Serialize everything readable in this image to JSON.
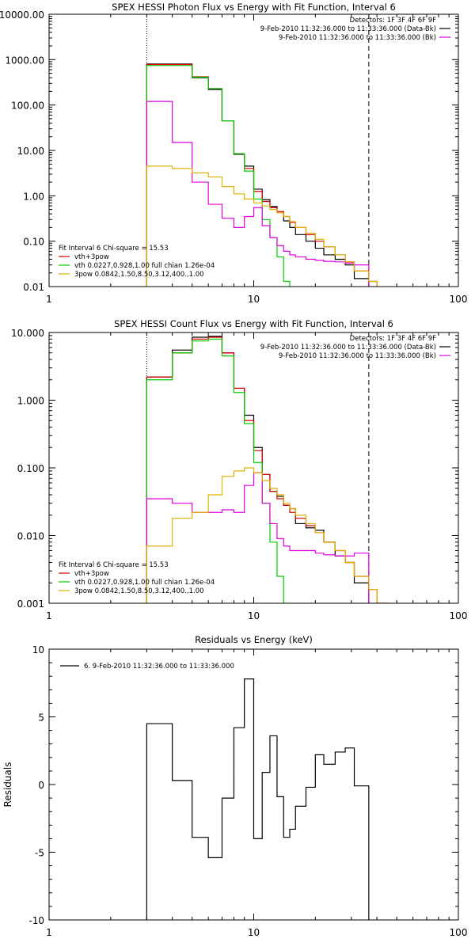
{
  "chart_data": [
    {
      "type": "line",
      "title": "SPEX HESSI Photon Flux vs Energy with Fit Function, Interval 6",
      "xlabel": "",
      "ylabel": "",
      "xscale": "log",
      "yscale": "log",
      "xlim": [
        1,
        100
      ],
      "ylim": [
        0.01,
        10000
      ],
      "xticks": [
        "1",
        "10",
        "100"
      ],
      "yticks": [
        "0.01",
        "0.10",
        "1.00",
        "10.00",
        "100.00",
        "1000.00",
        "10000.00"
      ],
      "grid": false,
      "vlines": [
        {
          "x": 3.0,
          "style": "dotted"
        },
        {
          "x": 36.5,
          "style": "dashed"
        }
      ],
      "header_lines": [
        "Detectors: 1F 3F 4F 6F 9F",
        "9-Feb-2010 11:32:36.000 to 11:33:36.000 (Data-Bk)",
        "9-Feb-2010 11:32:36.000 to 11:33:36.000 (Bk)"
      ],
      "legend_title": "Fit Interval 6   Chi-square = 15.53",
      "legend_entries": [
        "vth+3pow",
        "vth 0.0227,0.928,1.00  full chian 1.26e-04",
        "3pow 0.0842,1.50,8.50,3.12,400.,1.00"
      ],
      "edges": [
        3.0,
        4.0,
        5.0,
        6.0,
        7.0,
        8.0,
        9.0,
        10.0,
        11.0,
        12.0,
        13.0,
        14.0,
        15.0,
        16.0,
        18.0,
        20.0,
        22.0,
        25.0,
        28.0,
        31.0,
        36.5,
        40.0,
        45.0
      ],
      "series": [
        {
          "color": "#000000",
          "values": [
            800,
            800,
            400,
            220,
            45,
            8.2,
            4.5,
            1.4,
            0.82,
            0.58,
            0.42,
            0.28,
            0.2,
            0.14,
            0.1,
            0.07,
            0.05,
            0.04,
            0.03,
            0.015,
            null,
            null
          ]
        },
        {
          "color": "#d60000",
          "values": [
            780,
            780,
            420,
            230,
            45,
            8.5,
            4.0,
            1.25,
            0.75,
            0.55,
            0.45,
            0.35,
            0.26,
            0.2,
            0.14,
            0.1,
            0.075,
            0.05,
            0.035,
            0.022,
            0.013,
            null
          ]
        },
        {
          "color": "#00cc00",
          "values": [
            740,
            740,
            410,
            230,
            45,
            8.5,
            3.5,
            0.85,
            0.3,
            0.12,
            0.045,
            0.013,
            null,
            null,
            null,
            null,
            null,
            null,
            null,
            null,
            null,
            null
          ]
        },
        {
          "color": "#e000e0",
          "values": [
            120,
            15,
            2.0,
            0.65,
            0.32,
            0.2,
            0.35,
            0.55,
            0.22,
            0.12,
            0.08,
            0.06,
            0.05,
            0.045,
            0.04,
            0.038,
            0.036,
            0.035,
            0.033,
            0.03,
            null,
            null
          ]
        },
        {
          "color": "#e0b000",
          "values": [
            4.5,
            4.0,
            3.2,
            2.6,
            1.6,
            1.1,
            0.85,
            0.7,
            0.6,
            0.5,
            0.42,
            0.35,
            0.27,
            0.2,
            0.15,
            0.11,
            0.075,
            0.05,
            0.035,
            0.022,
            0.013,
            null
          ]
        }
      ]
    },
    {
      "type": "line",
      "title": "SPEX HESSI Count Flux vs Energy with Fit Function, Interval 6",
      "xlabel": "",
      "ylabel": "",
      "xscale": "log",
      "yscale": "log",
      "xlim": [
        1,
        100
      ],
      "ylim": [
        0.001,
        10
      ],
      "xticks": [
        "1",
        "10",
        "100"
      ],
      "yticks": [
        "0.001",
        "0.010",
        "0.100",
        "1.000",
        "10.000"
      ],
      "grid": false,
      "vlines": [
        {
          "x": 3.0,
          "style": "dotted"
        },
        {
          "x": 36.5,
          "style": "dashed"
        }
      ],
      "header_lines": [
        "Detectors: 1F 3F 4F 6F 9F",
        "9-Feb-2010 11:32:36.000 to 11:33:36.000 (Data-Bk)",
        "9-Feb-2010 11:32:36.000 to 11:33:36.000 (Bk)"
      ],
      "legend_title": "Fit Interval 6   Chi-square = 15.53",
      "legend_entries": [
        "vth+3pow",
        "vth 0.0227,0.928,1.00  full chian 1.26e-04",
        "3pow 0.0842,1.50,8.50,3.12,400.,1.00"
      ],
      "edges": [
        3.0,
        4.0,
        5.0,
        6.0,
        7.0,
        8.0,
        9.0,
        10.0,
        11.0,
        12.0,
        13.0,
        14.0,
        15.0,
        16.0,
        18.0,
        20.0,
        22.0,
        25.0,
        28.0,
        31.0,
        36.5,
        40.0,
        45.0
      ],
      "series": [
        {
          "color": "#000000",
          "values": [
            2.2,
            5.5,
            8.5,
            8.8,
            5.0,
            1.5,
            0.6,
            0.2,
            0.08,
            0.045,
            0.038,
            0.028,
            0.025,
            0.015,
            0.013,
            0.012,
            0.008,
            0.005,
            0.004,
            0.002,
            null,
            null
          ]
        },
        {
          "color": "#d60000",
          "values": [
            2.2,
            5.0,
            8.0,
            8.5,
            5.0,
            1.5,
            0.5,
            0.18,
            0.08,
            0.045,
            0.035,
            0.028,
            0.022,
            0.018,
            0.014,
            0.011,
            0.008,
            0.006,
            0.004,
            0.0025,
            0.0016,
            0.001
          ]
        },
        {
          "color": "#00cc00",
          "values": [
            2.0,
            5.0,
            7.5,
            8.0,
            4.5,
            1.3,
            0.45,
            0.12,
            0.03,
            0.008,
            0.0025,
            0.001,
            null,
            null,
            null,
            null,
            null,
            null,
            null,
            null,
            null,
            null
          ]
        },
        {
          "color": "#e000e0",
          "values": [
            0.035,
            0.03,
            0.022,
            0.022,
            0.024,
            0.022,
            0.055,
            0.085,
            0.03,
            0.015,
            0.009,
            0.007,
            0.006,
            0.006,
            0.006,
            0.0055,
            0.0052,
            0.005,
            0.005,
            0.0055,
            null,
            null
          ]
        },
        {
          "color": "#e0b000",
          "values": [
            0.007,
            0.018,
            0.022,
            0.04,
            0.075,
            0.09,
            0.1,
            0.085,
            0.065,
            0.05,
            0.04,
            0.03,
            0.025,
            0.02,
            0.015,
            0.011,
            0.008,
            0.006,
            0.004,
            0.0025,
            0.0016,
            0.001
          ]
        }
      ]
    },
    {
      "type": "line",
      "title": "Residuals vs Energy (keV)",
      "xlabel": "",
      "ylabel": "Residuals",
      "xscale": "log",
      "yscale": "linear",
      "xlim": [
        1,
        100
      ],
      "ylim": [
        -10,
        10
      ],
      "xticks": [
        "1",
        "10",
        "100"
      ],
      "yticks": [
        "-10",
        "-5",
        "0",
        "5",
        "10"
      ],
      "grid": false,
      "legend_entries": [
        "6.  9-Feb-2010 11:32:36.000 to 11:33:36.000"
      ],
      "edges": [
        3.0,
        4.0,
        5.0,
        6.0,
        7.0,
        8.0,
        9.0,
        10.0,
        11.0,
        12.0,
        13.0,
        14.0,
        15.0,
        16.0,
        18.0,
        20.0,
        22.0,
        25.0,
        28.0,
        31.0,
        36.5
      ],
      "series": [
        {
          "color": "#000000",
          "values": [
            4.5,
            0.3,
            -3.9,
            -5.4,
            -1.0,
            4.2,
            7.8,
            -4.0,
            0.9,
            3.6,
            -0.9,
            -3.9,
            -3.3,
            -1.6,
            -0.2,
            2.2,
            1.5,
            2.4,
            2.7,
            -0.1
          ]
        }
      ]
    }
  ]
}
